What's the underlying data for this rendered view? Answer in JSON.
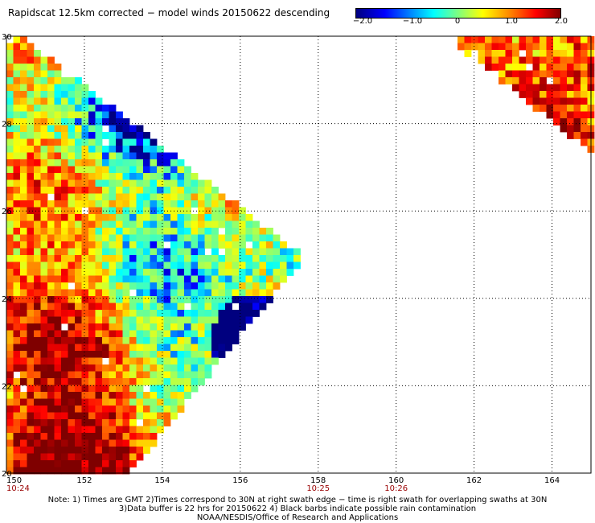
{
  "title": "Rapidscat 12.5km corrected − model winds 20150622 descending",
  "colorbar": {
    "labels": [
      "−2.0",
      "−1.0",
      "0",
      "1.0",
      "2.0"
    ],
    "min": -2.0,
    "max": 2.0,
    "colors": [
      "#00007f",
      "#0000ff",
      "#00ffff",
      "#7fff7f",
      "#ffff00",
      "#ff7f00",
      "#ff0000",
      "#7f0000"
    ]
  },
  "map": {
    "lon_range": [
      150,
      165
    ],
    "lat_range": [
      20,
      30
    ],
    "x_ticks": [
      "150",
      "152",
      "154",
      "156",
      "158",
      "160",
      "162",
      "164"
    ],
    "y_ticks": [
      "30",
      "28",
      "26",
      "24",
      "22",
      "20"
    ],
    "time_labels": [
      {
        "lon": 150,
        "text": "10:24"
      },
      {
        "lon": 158,
        "text": "10:25"
      },
      {
        "lon": 160,
        "text": "10:26"
      }
    ],
    "grid": true,
    "tick_color": "#000000",
    "time_label_color": "#990000"
  },
  "notes": {
    "line1": "Note: 1) Times are GMT 2)Times correspond to 30N at right swath edge − time is right swath for overlapping swaths at 30N",
    "line2": "3)Data buffer is 22 hrs for 20150622 4) Black barbs indicate possible rain contamination",
    "line3": "NOAA/NESDIS/Office of Research and Applications"
  }
}
